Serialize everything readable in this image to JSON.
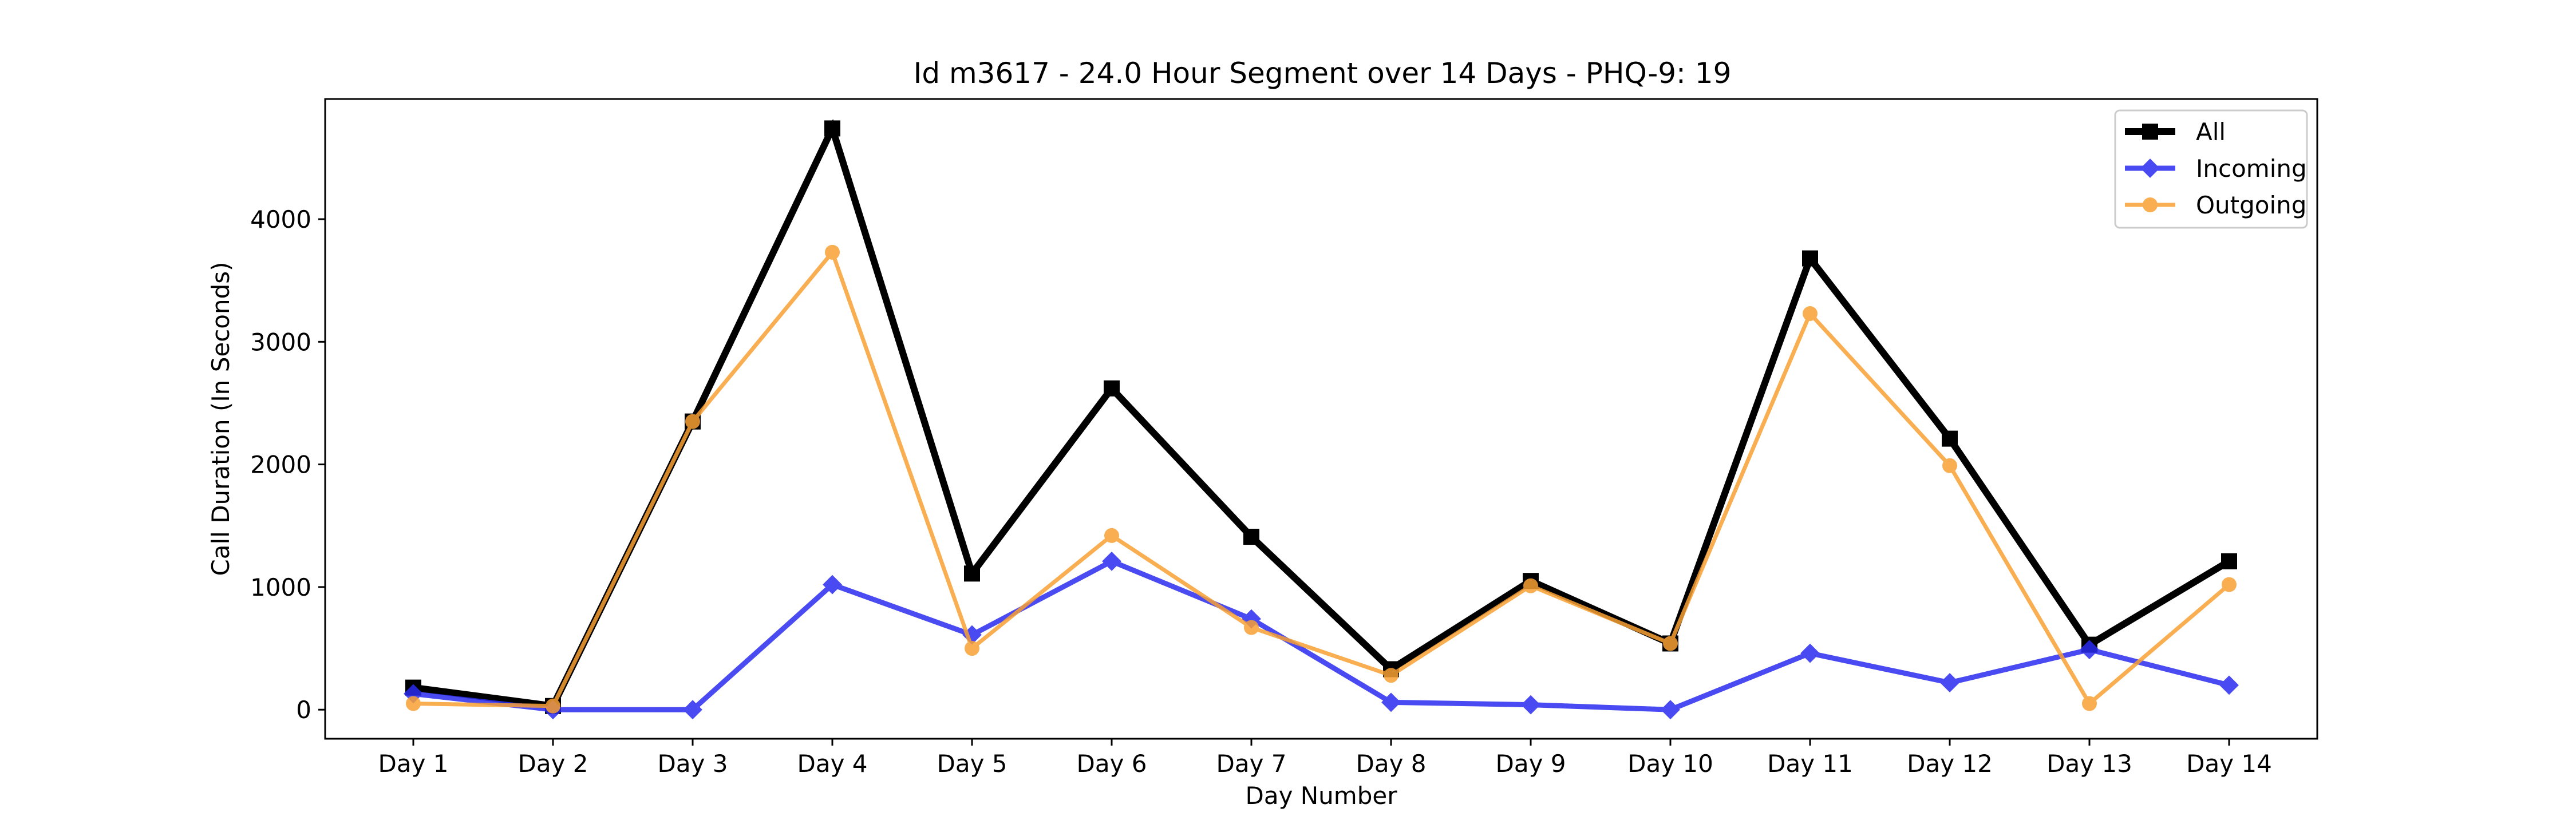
{
  "chart_data": {
    "type": "line",
    "title": "Id m3617 - 24.0 Hour Segment over 14 Days - PHQ-9: 19",
    "xlabel": "Day Number",
    "ylabel": "Call Duration (In Seconds)",
    "categories": [
      "Day 1",
      "Day 2",
      "Day 3",
      "Day 4",
      "Day 5",
      "Day 6",
      "Day 7",
      "Day 8",
      "Day 9",
      "Day 10",
      "Day 11",
      "Day 12",
      "Day 13",
      "Day 14"
    ],
    "yticks": [
      0,
      1000,
      2000,
      3000,
      4000
    ],
    "ylim": [
      -237,
      4980
    ],
    "grid": false,
    "legend_position": "top-right",
    "series": [
      {
        "name": "All",
        "color": "#000000",
        "marker": "square",
        "values": [
          180,
          30,
          2350,
          4740,
          1110,
          2620,
          1410,
          330,
          1050,
          540,
          3680,
          2210,
          530,
          1210
        ]
      },
      {
        "name": "Incoming",
        "color": "#2b2bf0",
        "marker": "diamond",
        "values": [
          130,
          0,
          0,
          1020,
          610,
          1210,
          740,
          60,
          40,
          0,
          460,
          220,
          490,
          200
        ]
      },
      {
        "name": "Outgoing",
        "color": "#f7a033",
        "marker": "circle",
        "values": [
          50,
          30,
          2350,
          3730,
          500,
          1420,
          670,
          280,
          1010,
          540,
          3230,
          1990,
          50,
          1020
        ]
      }
    ]
  }
}
